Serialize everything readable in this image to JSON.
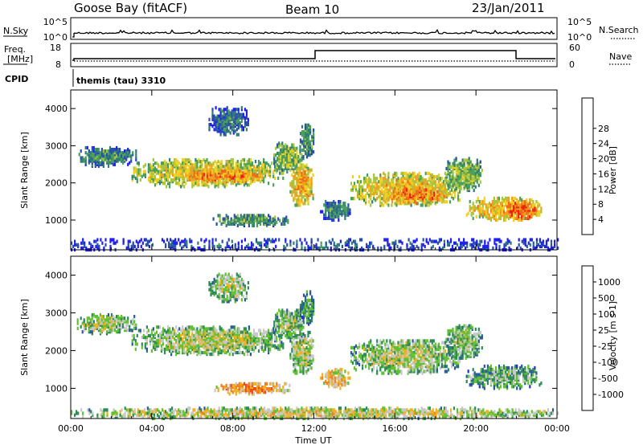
{
  "header": {
    "station": "Goose Bay (fitACF)",
    "beam": "Beam 10",
    "date": "23/Jan/2011"
  },
  "strips": {
    "nsky": {
      "label": "N.Sky",
      "ticks_left": [
        "10^5",
        "10^0"
      ],
      "ticks_right": [
        "10^5",
        "10^0"
      ],
      "right_label": "N.Search"
    },
    "freq": {
      "label_line1": "Freq.",
      "label_line2": "[MHz]",
      "ticks_left": [
        "18",
        "8"
      ],
      "ticks_right": [
        "60",
        "0"
      ],
      "right_label": "Nave"
    },
    "cpid": {
      "label": "CPID",
      "program": "themis (tau) 3310"
    }
  },
  "chart_data": [
    {
      "type": "heatmap",
      "name": "power",
      "ylabel": "Slant Range [km]",
      "xlabel": "",
      "ylim": [
        200,
        4500
      ],
      "xlim": [
        0,
        24
      ],
      "yticks": [
        "1000",
        "2000",
        "3000",
        "4000"
      ],
      "colorbar": {
        "label": "Power [dB]",
        "ticks": [
          "4",
          "8",
          "12",
          "16",
          "20",
          "24",
          "28"
        ],
        "colors": [
          "#1f1ff0",
          "#2a4fa8",
          "#2f7d74",
          "#4aa05a",
          "#a8c43c",
          "#f0d020",
          "#f0a020",
          "#f06818",
          "#f02010"
        ]
      },
      "regions": [
        {
          "t0": 0.3,
          "t1": 3.2,
          "r0": 2450,
          "r1": 2950,
          "level": 0.35
        },
        {
          "t0": 3.0,
          "t1": 10.5,
          "r0": 1900,
          "r1": 2650,
          "level": 0.6
        },
        {
          "t0": 5.5,
          "t1": 9.5,
          "r0": 2000,
          "r1": 2350,
          "level": 0.8
        },
        {
          "t0": 6.8,
          "t1": 8.8,
          "r0": 3300,
          "r1": 4050,
          "level": 0.3
        },
        {
          "t0": 7.0,
          "t1": 10.8,
          "r0": 850,
          "r1": 1150,
          "level": 0.4
        },
        {
          "t0": 10.0,
          "t1": 11.5,
          "r0": 2300,
          "r1": 3100,
          "level": 0.5
        },
        {
          "t0": 10.8,
          "t1": 12.0,
          "r0": 1400,
          "r1": 2500,
          "level": 0.7
        },
        {
          "t0": 11.3,
          "t1": 12.0,
          "r0": 2700,
          "r1": 3600,
          "level": 0.4
        },
        {
          "t0": 12.3,
          "t1": 13.8,
          "r0": 1000,
          "r1": 1500,
          "level": 0.35
        },
        {
          "t0": 13.8,
          "t1": 19.2,
          "r0": 1400,
          "r1": 2300,
          "level": 0.65
        },
        {
          "t0": 15.5,
          "t1": 18.5,
          "r0": 1450,
          "r1": 1900,
          "level": 0.8
        },
        {
          "t0": 18.5,
          "t1": 20.3,
          "r0": 1800,
          "r1": 2700,
          "level": 0.5
        },
        {
          "t0": 19.5,
          "t1": 23.2,
          "r0": 1000,
          "r1": 1600,
          "level": 0.7
        },
        {
          "t0": 21.5,
          "t1": 23.0,
          "r0": 1000,
          "r1": 1500,
          "level": 0.9
        },
        {
          "t0": 0.0,
          "t1": 24.0,
          "r0": 200,
          "r1": 480,
          "level": 0.2
        }
      ]
    },
    {
      "type": "heatmap",
      "name": "velocity",
      "ylabel": "Slant Range [km]",
      "xlabel": "Time UT",
      "ylim": [
        200,
        4500
      ],
      "xlim": [
        0,
        24
      ],
      "yticks": [
        "1000",
        "2000",
        "3000",
        "4000"
      ],
      "xticks": [
        "00:00",
        "04:00",
        "08:00",
        "12:00",
        "16:00",
        "20:00",
        "00:00"
      ],
      "colorbar": {
        "label": "Velocity [m s-1]",
        "ticks": [
          "1000",
          "500",
          "100",
          "25",
          "-25",
          "-100",
          "-500",
          "-1000"
        ],
        "colors": [
          "#2030d0",
          "#2a5a9a",
          "#2f8a5a",
          "#60c030",
          "#c8c8c8",
          "#f0b020",
          "#f08020",
          "#f04818",
          "#f01010"
        ]
      },
      "regions": [
        {
          "t0": 0.3,
          "t1": 3.2,
          "r0": 2450,
          "r1": 2950,
          "level": 0.5
        },
        {
          "t0": 3.0,
          "t1": 10.5,
          "r0": 1900,
          "r1": 2650,
          "level": 0.5
        },
        {
          "t0": 6.8,
          "t1": 8.8,
          "r0": 3300,
          "r1": 4050,
          "level": 0.5
        },
        {
          "t0": 7.0,
          "t1": 10.8,
          "r0": 850,
          "r1": 1150,
          "level": 0.72
        },
        {
          "t0": 10.0,
          "t1": 11.5,
          "r0": 2300,
          "r1": 3100,
          "level": 0.45
        },
        {
          "t0": 10.8,
          "t1": 12.0,
          "r0": 1400,
          "r1": 2500,
          "level": 0.5
        },
        {
          "t0": 11.3,
          "t1": 12.0,
          "r0": 2700,
          "r1": 3600,
          "level": 0.35
        },
        {
          "t0": 12.3,
          "t1": 13.8,
          "r0": 1000,
          "r1": 1500,
          "level": 0.65
        },
        {
          "t0": 13.8,
          "t1": 19.2,
          "r0": 1400,
          "r1": 2300,
          "level": 0.5
        },
        {
          "t0": 18.5,
          "t1": 20.3,
          "r0": 1800,
          "r1": 2700,
          "level": 0.45
        },
        {
          "t0": 19.5,
          "t1": 23.2,
          "r0": 1000,
          "r1": 1600,
          "level": 0.4
        },
        {
          "t0": 0.0,
          "t1": 24.0,
          "r0": 200,
          "r1": 480,
          "level": 0.55
        }
      ]
    }
  ]
}
